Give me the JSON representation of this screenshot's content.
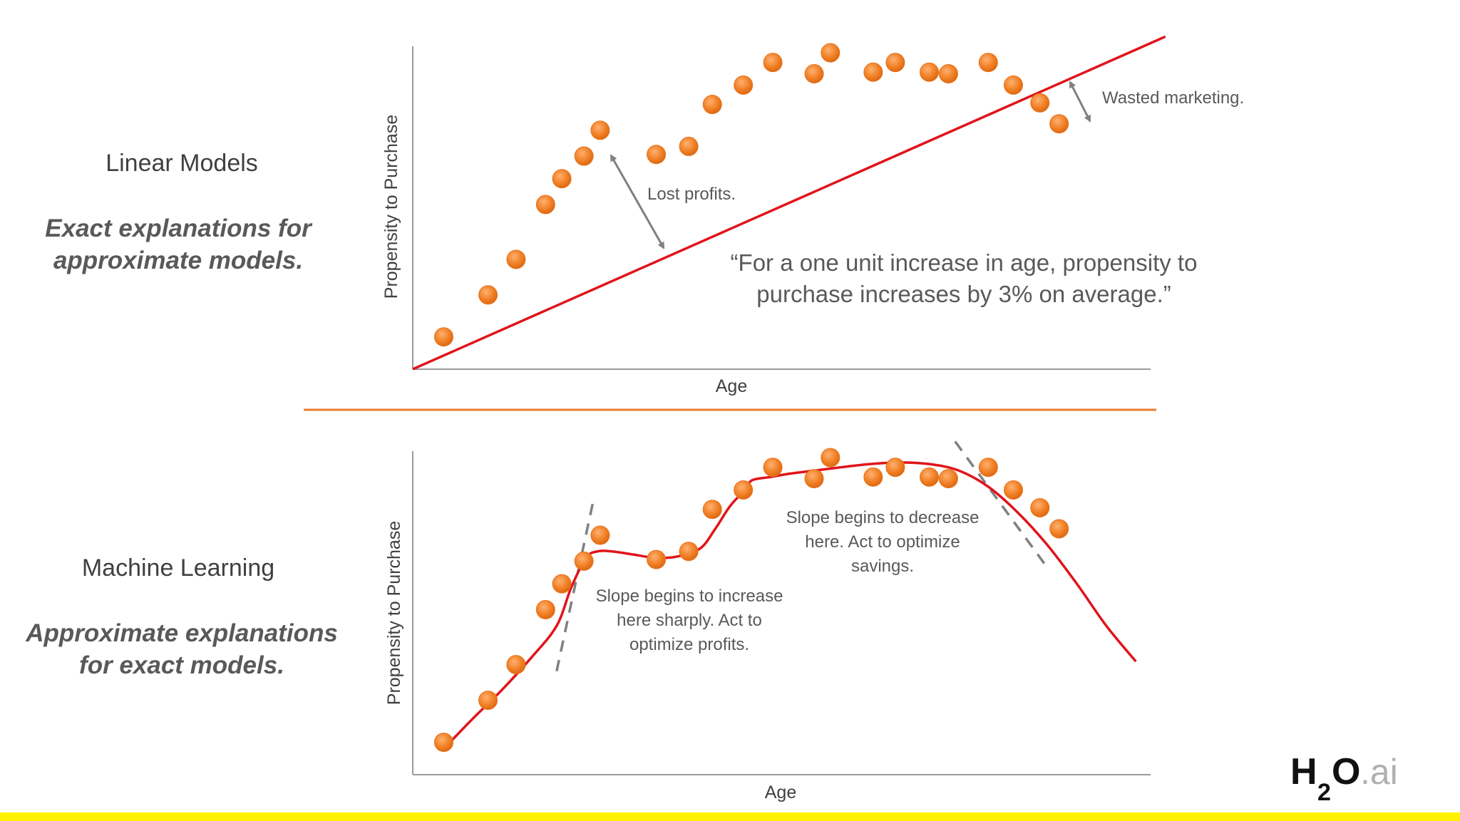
{
  "left_panel": {
    "top_title": "Linear Models",
    "top_sub_1": "Exact explanations for",
    "top_sub_2": "approximate models.",
    "bottom_title": "Machine Learning",
    "bottom_sub_1": "Approximate explanations",
    "bottom_sub_2": "for exact models."
  },
  "annotations": {
    "quote_line1": "“For a one unit increase in age, propensity to",
    "quote_line2": "purchase increases by 3% on average.”",
    "lost_profits": "Lost profits.",
    "wasted_marketing": "Wasted marketing.",
    "increase_1": "Slope begins to increase",
    "increase_2": "here sharply. Act to",
    "increase_3": "optimize profits.",
    "decrease_1": "Slope begins to decrease",
    "decrease_2": "here. Act to optimize",
    "decrease_3": "savings."
  },
  "logo": {
    "h": "H",
    "sub": "2",
    "o": "O",
    "ai": ".ai"
  },
  "colors": {
    "point": "#f07f24",
    "fit_line": "#e0141b",
    "divider": "#ed7d31",
    "arrow": "#808080",
    "bottom_bar": "#fff200"
  },
  "chart_data": [
    {
      "type": "scatter",
      "title": "",
      "xlabel": "Age",
      "ylabel": "Propensity to Purchase",
      "xlim": [
        0,
        100
      ],
      "ylim": [
        0,
        100
      ],
      "points": [
        {
          "x": 4.2,
          "y": 10
        },
        {
          "x": 10.2,
          "y": 23
        },
        {
          "x": 14,
          "y": 34
        },
        {
          "x": 18,
          "y": 51
        },
        {
          "x": 20.2,
          "y": 59
        },
        {
          "x": 23.2,
          "y": 66
        },
        {
          "x": 25.4,
          "y": 74
        },
        {
          "x": 33,
          "y": 66.5
        },
        {
          "x": 37.4,
          "y": 69
        },
        {
          "x": 40.6,
          "y": 82
        },
        {
          "x": 44.8,
          "y": 88
        },
        {
          "x": 48.8,
          "y": 95
        },
        {
          "x": 54.4,
          "y": 91.5
        },
        {
          "x": 56.6,
          "y": 98
        },
        {
          "x": 62.4,
          "y": 92
        },
        {
          "x": 65.4,
          "y": 95
        },
        {
          "x": 70,
          "y": 92
        },
        {
          "x": 72.6,
          "y": 91.5
        },
        {
          "x": 78,
          "y": 95
        },
        {
          "x": 81.4,
          "y": 88
        },
        {
          "x": 85,
          "y": 82.5
        },
        {
          "x": 87.6,
          "y": 76
        }
      ],
      "fit": {
        "type": "linear",
        "x": [
          0,
          102
        ],
        "y": [
          0,
          103
        ]
      }
    },
    {
      "type": "scatter",
      "title": "",
      "xlabel": "Age",
      "ylabel": "Propensity to Purchase",
      "xlim": [
        0,
        100
      ],
      "ylim": [
        0,
        100
      ],
      "points": [
        {
          "x": 4.2,
          "y": 10
        },
        {
          "x": 10.2,
          "y": 23
        },
        {
          "x": 14,
          "y": 34
        },
        {
          "x": 18,
          "y": 51
        },
        {
          "x": 20.2,
          "y": 59
        },
        {
          "x": 23.2,
          "y": 66
        },
        {
          "x": 25.4,
          "y": 74
        },
        {
          "x": 33,
          "y": 66.5
        },
        {
          "x": 37.4,
          "y": 69
        },
        {
          "x": 40.6,
          "y": 82
        },
        {
          "x": 44.8,
          "y": 88
        },
        {
          "x": 48.8,
          "y": 95
        },
        {
          "x": 54.4,
          "y": 91.5
        },
        {
          "x": 56.6,
          "y": 98
        },
        {
          "x": 62.4,
          "y": 92
        },
        {
          "x": 65.4,
          "y": 95
        },
        {
          "x": 70,
          "y": 92
        },
        {
          "x": 72.6,
          "y": 91.5
        },
        {
          "x": 78,
          "y": 95
        },
        {
          "x": 81.4,
          "y": 88
        },
        {
          "x": 85,
          "y": 82.5
        },
        {
          "x": 87.6,
          "y": 76
        }
      ],
      "fit": {
        "type": "smooth",
        "x": [
          4.2,
          8,
          12,
          16,
          19.5,
          21.5,
          23.5,
          25,
          27,
          30,
          33,
          36,
          39,
          41,
          43,
          45,
          46,
          48.5,
          51,
          54.5,
          58,
          62,
          66,
          70,
          74,
          78,
          82,
          86,
          90,
          94,
          98
        ],
        "y": [
          8,
          17,
          26,
          36,
          46,
          58,
          67,
          69,
          69,
          68,
          67,
          67.5,
          70,
          76,
          83,
          88,
          91,
          92,
          93,
          94,
          95,
          96,
          96.5,
          96,
          94,
          89,
          81,
          71,
          59,
          46,
          35
        ]
      },
      "tangents": [
        {
          "x": [
            19.5,
            24.5
          ],
          "y": [
            32,
            85
          ]
        },
        {
          "x": [
            73.5,
            86
          ],
          "y": [
            103,
            64
          ]
        }
      ]
    }
  ]
}
